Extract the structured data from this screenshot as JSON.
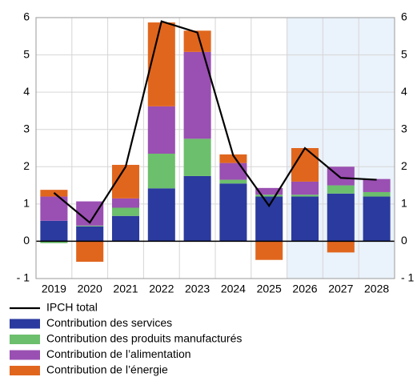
{
  "chart_data": {
    "type": "bar",
    "categories": [
      "2019",
      "2020",
      "2021",
      "2022",
      "2023",
      "2024",
      "2025",
      "2026",
      "2027",
      "2028"
    ],
    "series": [
      {
        "name": "Contribution des services",
        "color": "#2b3a9e",
        "values": [
          0.55,
          0.4,
          0.68,
          1.42,
          1.75,
          1.55,
          1.2,
          1.2,
          1.28,
          1.2
        ]
      },
      {
        "name": "Contribution des produits manufacturés",
        "color": "#6cbf6c",
        "values": [
          -0.05,
          0.02,
          0.22,
          0.93,
          1.0,
          0.1,
          0.05,
          0.05,
          0.22,
          0.12
        ]
      },
      {
        "name": "Contribution de l’alimentation",
        "color": "#9a4fb2",
        "values": [
          0.65,
          0.65,
          0.25,
          1.27,
          2.33,
          0.45,
          0.18,
          0.35,
          0.5,
          0.35
        ]
      },
      {
        "name": "Contribution de l’énergie",
        "color": "#e0661e",
        "values": [
          0.18,
          -0.55,
          0.9,
          2.25,
          0.57,
          0.23,
          -0.5,
          0.9,
          -0.3,
          0
        ]
      }
    ],
    "line": {
      "name": "IPCH total",
      "color": "#000000",
      "values": [
        1.3,
        0.5,
        2.0,
        5.9,
        5.6,
        2.3,
        0.95,
        2.5,
        1.7,
        1.65
      ]
    },
    "ylim": [
      -1,
      6
    ],
    "yticks": [
      {
        "value": -1,
        "label": "- 1"
      },
      0,
      1,
      2,
      3,
      4,
      5,
      6
    ],
    "y2lim": [
      -1,
      6
    ],
    "y2ticks": [
      {
        "value": -1,
        "label": "- 1"
      },
      0,
      1,
      2,
      3,
      4,
      5,
      6
    ],
    "grid": true
  }
}
